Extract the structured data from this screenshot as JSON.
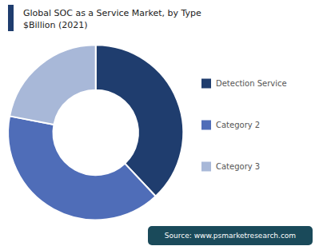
{
  "chart_data": {
    "type": "pie",
    "title": "Global SOC as a Service Market, by Type",
    "subtitle": "$Billion (2021)",
    "categories": [
      "Detection Service",
      "Category 2",
      "Category 3"
    ],
    "values": [
      38,
      40,
      22
    ],
    "colors": [
      "#1f3d6e",
      "#4f6db8",
      "#a8b8d8"
    ],
    "legend": "right",
    "annotations": [
      "Source: www.psmarketresearch.com"
    ]
  }
}
